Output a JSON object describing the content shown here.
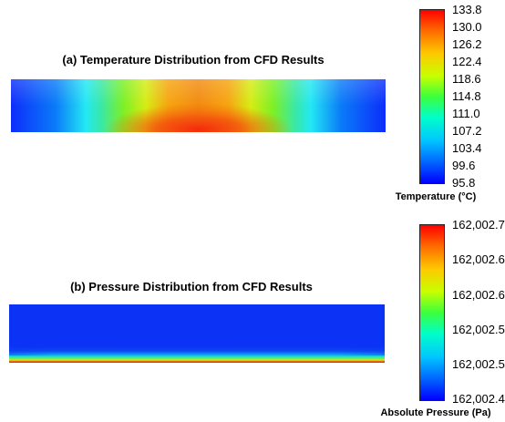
{
  "panels": [
    {
      "id": "temperature",
      "title": "(a) Temperature Distribution from CFD Results",
      "scale_label": "Temperature (°C)",
      "scale_ticks": [
        "133.8",
        "130.0",
        "126.2",
        "122.4",
        "118.6",
        "114.8",
        "111.0",
        "107.2",
        "103.4",
        "99.6",
        "95.8"
      ]
    },
    {
      "id": "pressure",
      "title": "(b) Pressure Distribution from CFD Results",
      "scale_label": "Absolute Pressure (Pa)",
      "scale_ticks": [
        "162,002.7",
        "162,002.6",
        "162,002.6",
        "162,002.5",
        "162,002.5",
        "162,002.4"
      ]
    }
  ],
  "colormap": {
    "min_color": "#0000ff",
    "max_color": "#ff0000"
  }
}
